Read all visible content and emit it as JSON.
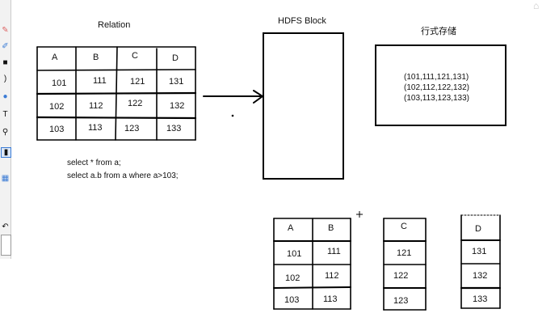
{
  "relation": {
    "title": "Relation",
    "headers": [
      "A",
      "B",
      "C",
      "D"
    ],
    "rows": [
      [
        "101",
        "111",
        "121",
        "131"
      ],
      [
        "102",
        "112",
        "122",
        "132"
      ],
      [
        "103",
        "113",
        "123",
        "133"
      ]
    ]
  },
  "hdfs": {
    "title": "HDFS Block"
  },
  "row_storage": {
    "title": "行式存储",
    "lines": [
      "(101,111,121,131)",
      "(102,112,122,132)",
      "(103,113,123,133)"
    ]
  },
  "sql": {
    "line1": "select * from a;",
    "line2": "select a.b from a where  a>103;"
  },
  "col_group_ab": {
    "headers": [
      "A",
      "B"
    ],
    "rows": [
      [
        "101",
        "111"
      ],
      [
        "102",
        "112"
      ],
      [
        "103",
        "113"
      ]
    ]
  },
  "col_group_c": {
    "header": "C",
    "values": [
      "121",
      "122",
      "123"
    ]
  },
  "col_group_d": {
    "header": "D",
    "values": [
      "131",
      "132",
      "133"
    ]
  },
  "toolbar": {
    "icons": [
      "eraser-icon",
      "pen-icon",
      "stamp-icon",
      "curve-icon",
      "ellipse-icon",
      "text-icon",
      "zoom-icon",
      "select-icon",
      "fill-icon",
      "undo-icon"
    ]
  },
  "colors": {
    "line": "#000000",
    "toolbar_bg": "#f2f2f2",
    "select_accent": "#3a7bd5"
  }
}
